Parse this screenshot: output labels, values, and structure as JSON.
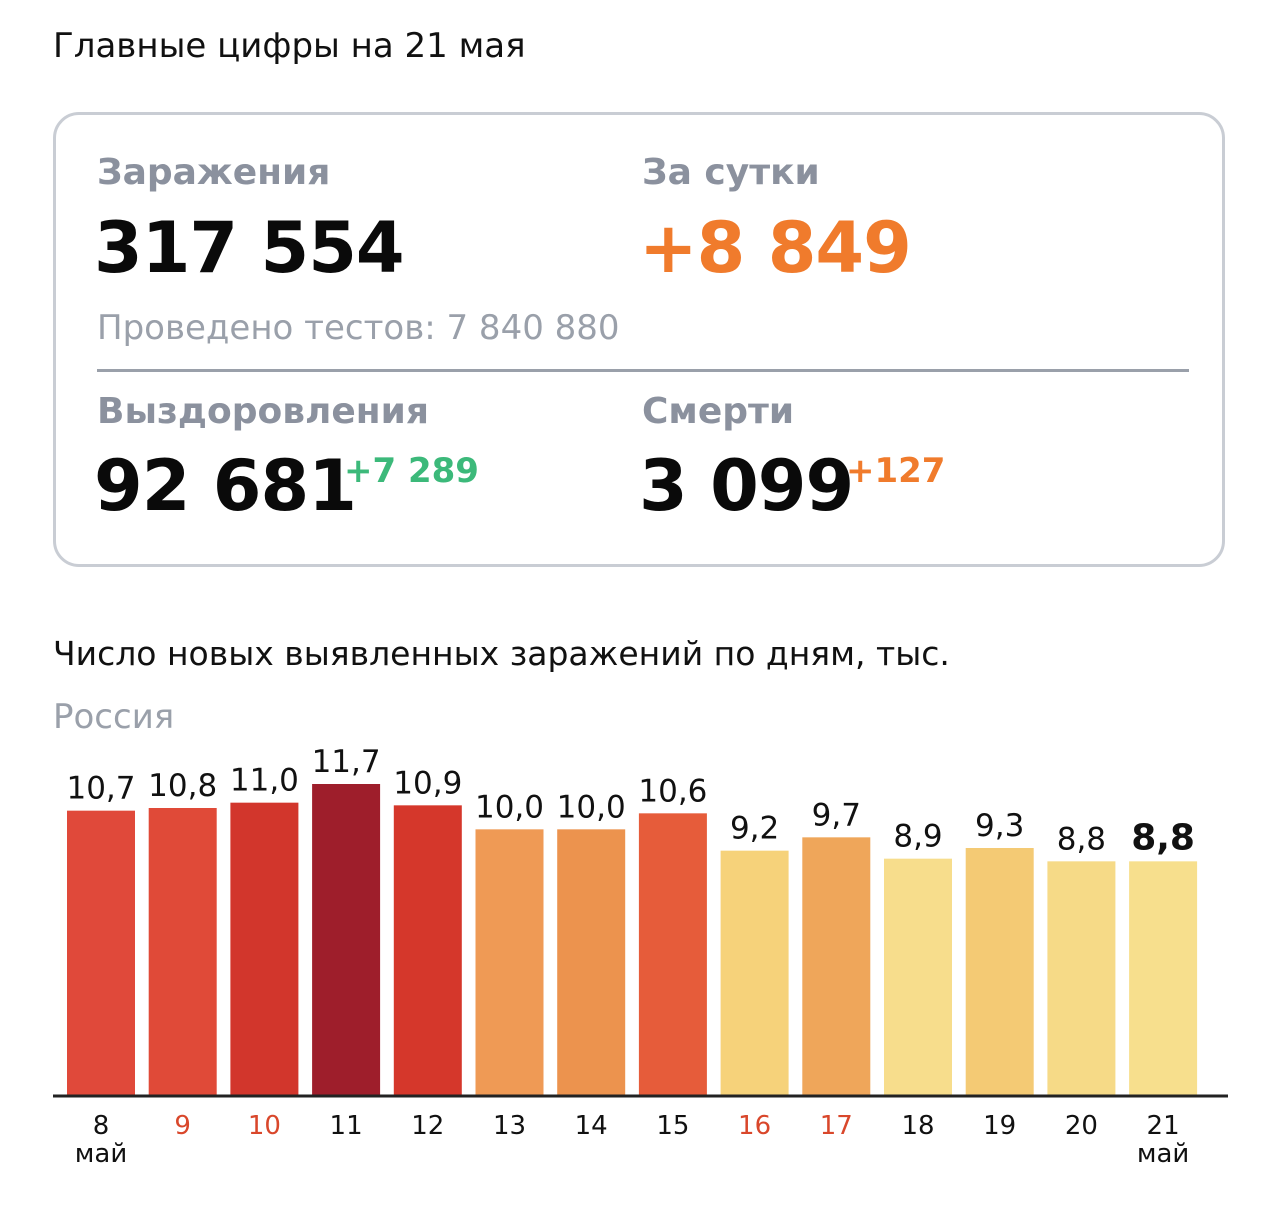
{
  "header": {
    "title": "Главные цифры на 21 мая"
  },
  "stats": {
    "infections": {
      "label": "Заражения",
      "value": "317 554"
    },
    "daily": {
      "label": "За сутки",
      "value": "+8 849"
    },
    "tests": "Проведено тестов: 7 840 880",
    "recoveries": {
      "label": "Выздоровления",
      "value": "92 681",
      "delta": "+7 289"
    },
    "deaths": {
      "label": "Смерти",
      "value": "3 099",
      "delta": "+127"
    }
  },
  "colors": {
    "orange": "#f07b2c",
    "green": "#3cb97a",
    "weekend": "#d9472b",
    "grey_label": "#8b919e"
  },
  "chart_data": {
    "type": "bar",
    "title": "Число новых выявленных заражений по дням, тыс.",
    "subtitle": "Россия",
    "categories": [
      "8",
      "9",
      "10",
      "11",
      "12",
      "13",
      "14",
      "15",
      "16",
      "17",
      "18",
      "19",
      "20",
      "21"
    ],
    "month_labels": {
      "8": "май",
      "21": "май"
    },
    "weekend_categories": [
      "9",
      "10",
      "16",
      "17"
    ],
    "values": [
      10.7,
      10.8,
      11.0,
      11.7,
      10.9,
      10.0,
      10.0,
      10.6,
      9.2,
      9.7,
      8.9,
      9.3,
      8.8,
      8.8
    ],
    "value_labels": [
      "10,7",
      "10,8",
      "11,0",
      "11,7",
      "10,9",
      "10,0",
      "10,0",
      "10,6",
      "9,2",
      "9,7",
      "8,9",
      "9,3",
      "8,8",
      "8,8"
    ],
    "bar_colors": [
      "#e0493a",
      "#e04a38",
      "#d2362c",
      "#9e1e2b",
      "#d5372b",
      "#ef9a55",
      "#ec934e",
      "#e65c3a",
      "#f6d27a",
      "#efa65a",
      "#f7dd8c",
      "#f4ca74",
      "#f6da87",
      "#f7df8d"
    ],
    "highlight_last": true,
    "ylim": [
      0,
      11.7
    ],
    "grid": false
  }
}
